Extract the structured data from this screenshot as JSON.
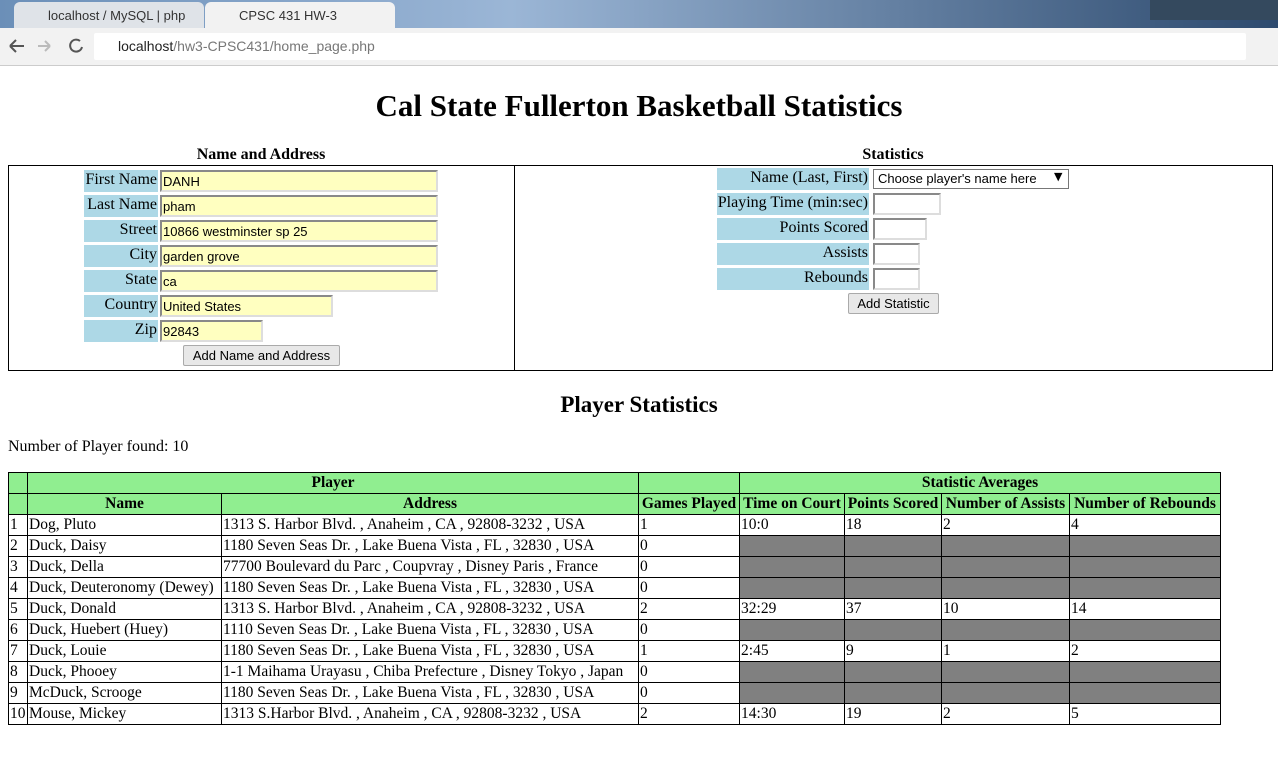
{
  "browser": {
    "tabs": [
      {
        "title": "localhost / MySQL | php"
      },
      {
        "title": "CPSC 431 HW-3"
      }
    ],
    "url_host": "localhost",
    "url_path": "/hw3-CPSC431/home_page.php"
  },
  "header": {
    "title": "Cal State Fullerton Basketball Statistics"
  },
  "name_address_form": {
    "heading": "Name and Address",
    "fields": [
      {
        "label": "First Name",
        "value": "DANH"
      },
      {
        "label": "Last Name",
        "value": "pham"
      },
      {
        "label": "Street",
        "value": "10866 westminster sp 25"
      },
      {
        "label": "City",
        "value": "garden grove"
      },
      {
        "label": "State",
        "value": "ca"
      },
      {
        "label": "Country",
        "value": "United States"
      },
      {
        "label": "Zip",
        "value": "92843"
      }
    ],
    "button": "Add Name and Address"
  },
  "statistics_form": {
    "heading": "Statistics",
    "select_label": "Name (Last, First)",
    "select_placeholder": "Choose player's name here",
    "fields": [
      {
        "label": "Playing Time (min:sec)"
      },
      {
        "label": "Points Scored"
      },
      {
        "label": "Assists"
      },
      {
        "label": "Rebounds"
      }
    ],
    "button": "Add Statistic"
  },
  "player_statistics": {
    "heading": "Player Statistics",
    "count_text": "Number of Player found: 10",
    "table": {
      "groups": [
        "Player",
        "Statistic Averages"
      ],
      "columns": [
        "Name",
        "Address",
        "Games Played",
        "Time on Court",
        "Points Scored",
        "Number of Assists",
        "Number of Rebounds"
      ],
      "rows": [
        [
          1,
          "Dog, Pluto",
          "1313 S. Harbor Blvd. , Anaheim , CA , 92808-3232 , USA",
          1,
          "10:0",
          18,
          2,
          4
        ],
        [
          2,
          "Duck, Daisy",
          "1180 Seven Seas Dr. , Lake Buena Vista , FL , 32830 , USA",
          0,
          null,
          null,
          null,
          null
        ],
        [
          3,
          "Duck, Della",
          "77700 Boulevard du Parc , Coupvray , Disney Paris , France",
          0,
          null,
          null,
          null,
          null
        ],
        [
          4,
          "Duck, Deuteronomy (Dewey)",
          "1180 Seven Seas Dr. , Lake Buena Vista , FL , 32830 , USA",
          0,
          null,
          null,
          null,
          null
        ],
        [
          5,
          "Duck, Donald",
          "1313 S. Harbor Blvd. , Anaheim , CA , 92808-3232 , USA",
          2,
          "32:29",
          37,
          10,
          14
        ],
        [
          6,
          "Duck, Huebert (Huey)",
          "1110 Seven Seas Dr. , Lake Buena Vista , FL , 32830 , USA",
          0,
          null,
          null,
          null,
          null
        ],
        [
          7,
          "Duck, Louie",
          "1180 Seven Seas Dr. , Lake Buena Vista , FL , 32830 , USA",
          1,
          "2:45",
          9,
          1,
          2
        ],
        [
          8,
          "Duck, Phooey",
          "1-1 Maihama Urayasu , Chiba Prefecture , Disney Tokyo , Japan",
          0,
          null,
          null,
          null,
          null
        ],
        [
          9,
          "McDuck, Scrooge",
          "1180 Seven Seas Dr. , Lake Buena Vista , FL , 32830 , USA",
          0,
          null,
          null,
          null,
          null
        ],
        [
          10,
          "Mouse, Mickey",
          "1313 S.Harbor Blvd. , Anaheim , CA , 92808-3232 , USA",
          2,
          "14:30",
          19,
          2,
          5
        ]
      ]
    }
  }
}
